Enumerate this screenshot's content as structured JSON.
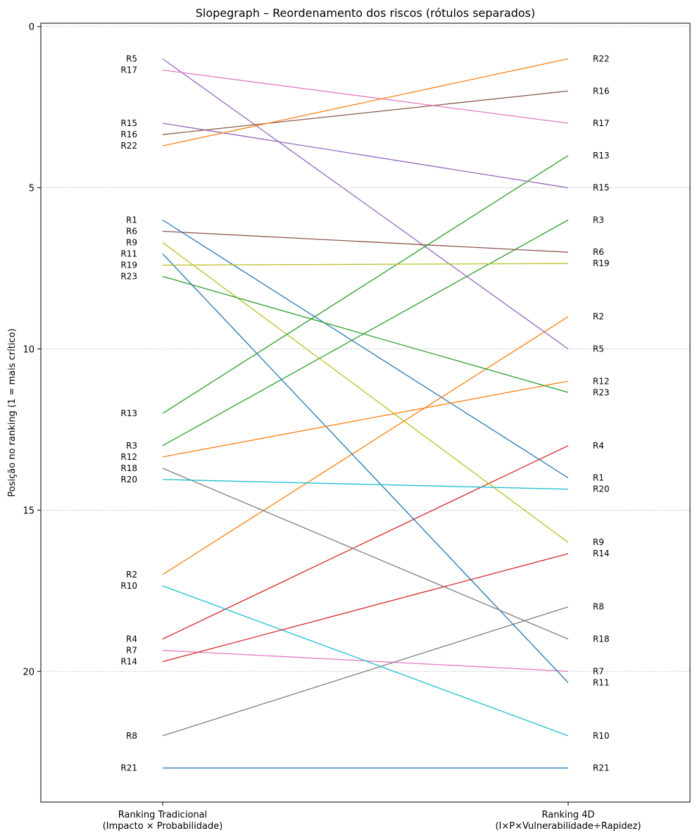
{
  "chart_data": {
    "type": "line",
    "subtype": "slopegraph",
    "title": "Slopegraph – Reordenamento dos riscos (rótulos separados)",
    "ylabel": "Posição no ranking (1 = mais crítico)",
    "ylim": [
      0,
      24
    ],
    "y_inverted": true,
    "yticks": [
      0,
      5,
      10,
      15,
      20
    ],
    "grid": "horizontal-dashed",
    "x_categories": [
      {
        "line1": "Ranking Tradicional",
        "line2": "(Impacto × Probabilidade)"
      },
      {
        "line1": "Ranking 4D",
        "line2": "(I×P×Vulnerabilidade÷Rapidez)"
      }
    ],
    "series": [
      {
        "name": "R1",
        "left": 6,
        "right": 14,
        "color": "#1f77b4"
      },
      {
        "name": "R2",
        "left": 17,
        "right": 9,
        "color": "#ff7f0e"
      },
      {
        "name": "R3",
        "left": 13,
        "right": 6,
        "color": "#2ca02c"
      },
      {
        "name": "R4",
        "left": 19,
        "right": 13,
        "color": "#d62728"
      },
      {
        "name": "R5",
        "left": 1,
        "right": 10,
        "color": "#9467bd"
      },
      {
        "name": "R6",
        "left": 6.35,
        "right": 7,
        "color": "#8c564b"
      },
      {
        "name": "R7",
        "left": 19.35,
        "right": 20,
        "color": "#e377c2"
      },
      {
        "name": "R8",
        "left": 22,
        "right": 18,
        "color": "#7f7f7f"
      },
      {
        "name": "R9",
        "left": 6.7,
        "right": 16,
        "color": "#bcbd22"
      },
      {
        "name": "R10",
        "left": 17.35,
        "right": 22,
        "color": "#17becf"
      },
      {
        "name": "R11",
        "left": 7.05,
        "right": 20.35,
        "color": "#1f77b4"
      },
      {
        "name": "R12",
        "left": 13.35,
        "right": 11,
        "color": "#ff7f0e"
      },
      {
        "name": "R13",
        "left": 12,
        "right": 4,
        "color": "#2ca02c"
      },
      {
        "name": "R14",
        "left": 19.7,
        "right": 16.35,
        "color": "#d62728"
      },
      {
        "name": "R15",
        "left": 3,
        "right": 5,
        "color": "#9467bd"
      },
      {
        "name": "R16",
        "left": 3.35,
        "right": 2,
        "color": "#8c564b"
      },
      {
        "name": "R17",
        "left": 1.35,
        "right": 3,
        "color": "#e377c2"
      },
      {
        "name": "R18",
        "left": 13.7,
        "right": 19,
        "color": "#7f7f7f"
      },
      {
        "name": "R19",
        "left": 7.4,
        "right": 7.35,
        "color": "#bcbd22"
      },
      {
        "name": "R20",
        "left": 14.05,
        "right": 14.35,
        "color": "#17becf"
      },
      {
        "name": "R21",
        "left": 23,
        "right": 23,
        "color": "#1f77b4"
      },
      {
        "name": "R22",
        "left": 3.7,
        "right": 1,
        "color": "#ff7f0e"
      },
      {
        "name": "R23",
        "left": 7.75,
        "right": 11.35,
        "color": "#2ca02c"
      }
    ]
  }
}
